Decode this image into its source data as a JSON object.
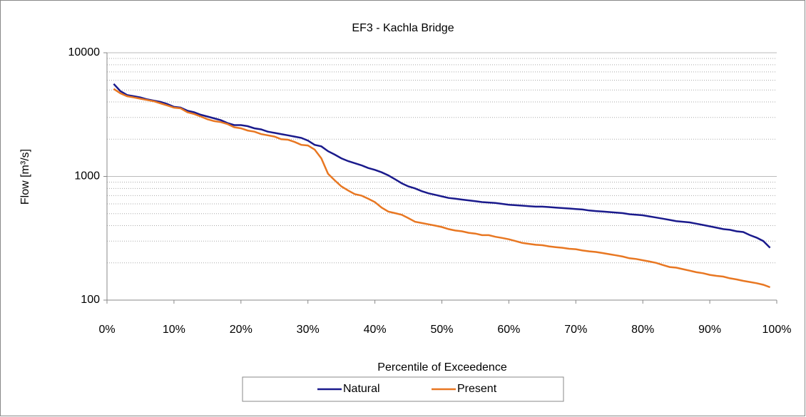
{
  "chart_data": {
    "type": "line",
    "title": "EF3 - Kachla Bridge",
    "x_label": "Percentile of Exceedence",
    "y_label": "Flow [m³/s]",
    "x": [
      1,
      2,
      3,
      4,
      5,
      6,
      7,
      8,
      9,
      10,
      11,
      12,
      13,
      14,
      15,
      16,
      17,
      18,
      19,
      20,
      21,
      22,
      23,
      24,
      25,
      26,
      27,
      28,
      29,
      30,
      31,
      32,
      33,
      34,
      35,
      36,
      37,
      38,
      39,
      40,
      41,
      42,
      43,
      44,
      45,
      46,
      47,
      48,
      49,
      50,
      51,
      52,
      53,
      54,
      55,
      56,
      57,
      58,
      59,
      60,
      61,
      62,
      63,
      64,
      65,
      66,
      67,
      68,
      69,
      70,
      71,
      72,
      73,
      74,
      75,
      76,
      77,
      78,
      79,
      80,
      81,
      82,
      83,
      84,
      85,
      86,
      87,
      88,
      89,
      90,
      91,
      92,
      93,
      94,
      95,
      96,
      97,
      98,
      99
    ],
    "series": [
      {
        "name": "Natural",
        "color": "#1a1a8c",
        "values": [
          5600,
          4900,
          4550,
          4450,
          4350,
          4200,
          4100,
          4000,
          3850,
          3650,
          3600,
          3400,
          3300,
          3150,
          3050,
          2950,
          2850,
          2700,
          2600,
          2600,
          2550,
          2450,
          2400,
          2300,
          2250,
          2200,
          2150,
          2100,
          2050,
          1950,
          1800,
          1750,
          1600,
          1500,
          1400,
          1330,
          1280,
          1230,
          1170,
          1130,
          1080,
          1020,
          950,
          880,
          830,
          800,
          760,
          730,
          710,
          690,
          670,
          660,
          650,
          640,
          630,
          620,
          615,
          610,
          600,
          590,
          585,
          580,
          575,
          570,
          570,
          565,
          560,
          555,
          550,
          545,
          540,
          530,
          525,
          520,
          515,
          510,
          505,
          495,
          490,
          485,
          475,
          465,
          455,
          445,
          435,
          430,
          425,
          415,
          405,
          395,
          385,
          375,
          370,
          360,
          355,
          335,
          320,
          300,
          265
        ]
      },
      {
        "name": "Present",
        "color": "#e87722",
        "values": [
          5100,
          4700,
          4450,
          4350,
          4250,
          4150,
          4050,
          3900,
          3750,
          3600,
          3550,
          3300,
          3200,
          3050,
          2900,
          2800,
          2750,
          2650,
          2500,
          2450,
          2350,
          2300,
          2200,
          2150,
          2100,
          2000,
          1980,
          1900,
          1800,
          1780,
          1650,
          1400,
          1050,
          930,
          830,
          770,
          720,
          700,
          660,
          620,
          560,
          520,
          505,
          490,
          460,
          430,
          420,
          410,
          400,
          390,
          375,
          365,
          360,
          350,
          345,
          335,
          335,
          325,
          318,
          310,
          300,
          290,
          285,
          280,
          278,
          272,
          268,
          265,
          260,
          258,
          252,
          248,
          245,
          240,
          235,
          230,
          225,
          218,
          215,
          210,
          205,
          200,
          192,
          185,
          183,
          178,
          173,
          168,
          165,
          160,
          157,
          155,
          150,
          147,
          143,
          140,
          137,
          133,
          127
        ]
      }
    ],
    "xlim": [
      0,
      100
    ],
    "xticks": [
      {
        "value": 0,
        "label": "0%"
      },
      {
        "value": 10,
        "label": "10%"
      },
      {
        "value": 20,
        "label": "20%"
      },
      {
        "value": 30,
        "label": "30%"
      },
      {
        "value": 40,
        "label": "40%"
      },
      {
        "value": 50,
        "label": "50%"
      },
      {
        "value": 60,
        "label": "60%"
      },
      {
        "value": 70,
        "label": "70%"
      },
      {
        "value": 80,
        "label": "80%"
      },
      {
        "value": 90,
        "label": "90%"
      },
      {
        "value": 100,
        "label": "100%"
      }
    ],
    "ylim": [
      100,
      10000
    ],
    "yticks": [
      100,
      1000,
      10000
    ],
    "log_y": true,
    "grid": true,
    "minor_grid": true,
    "legend": "bottom"
  }
}
